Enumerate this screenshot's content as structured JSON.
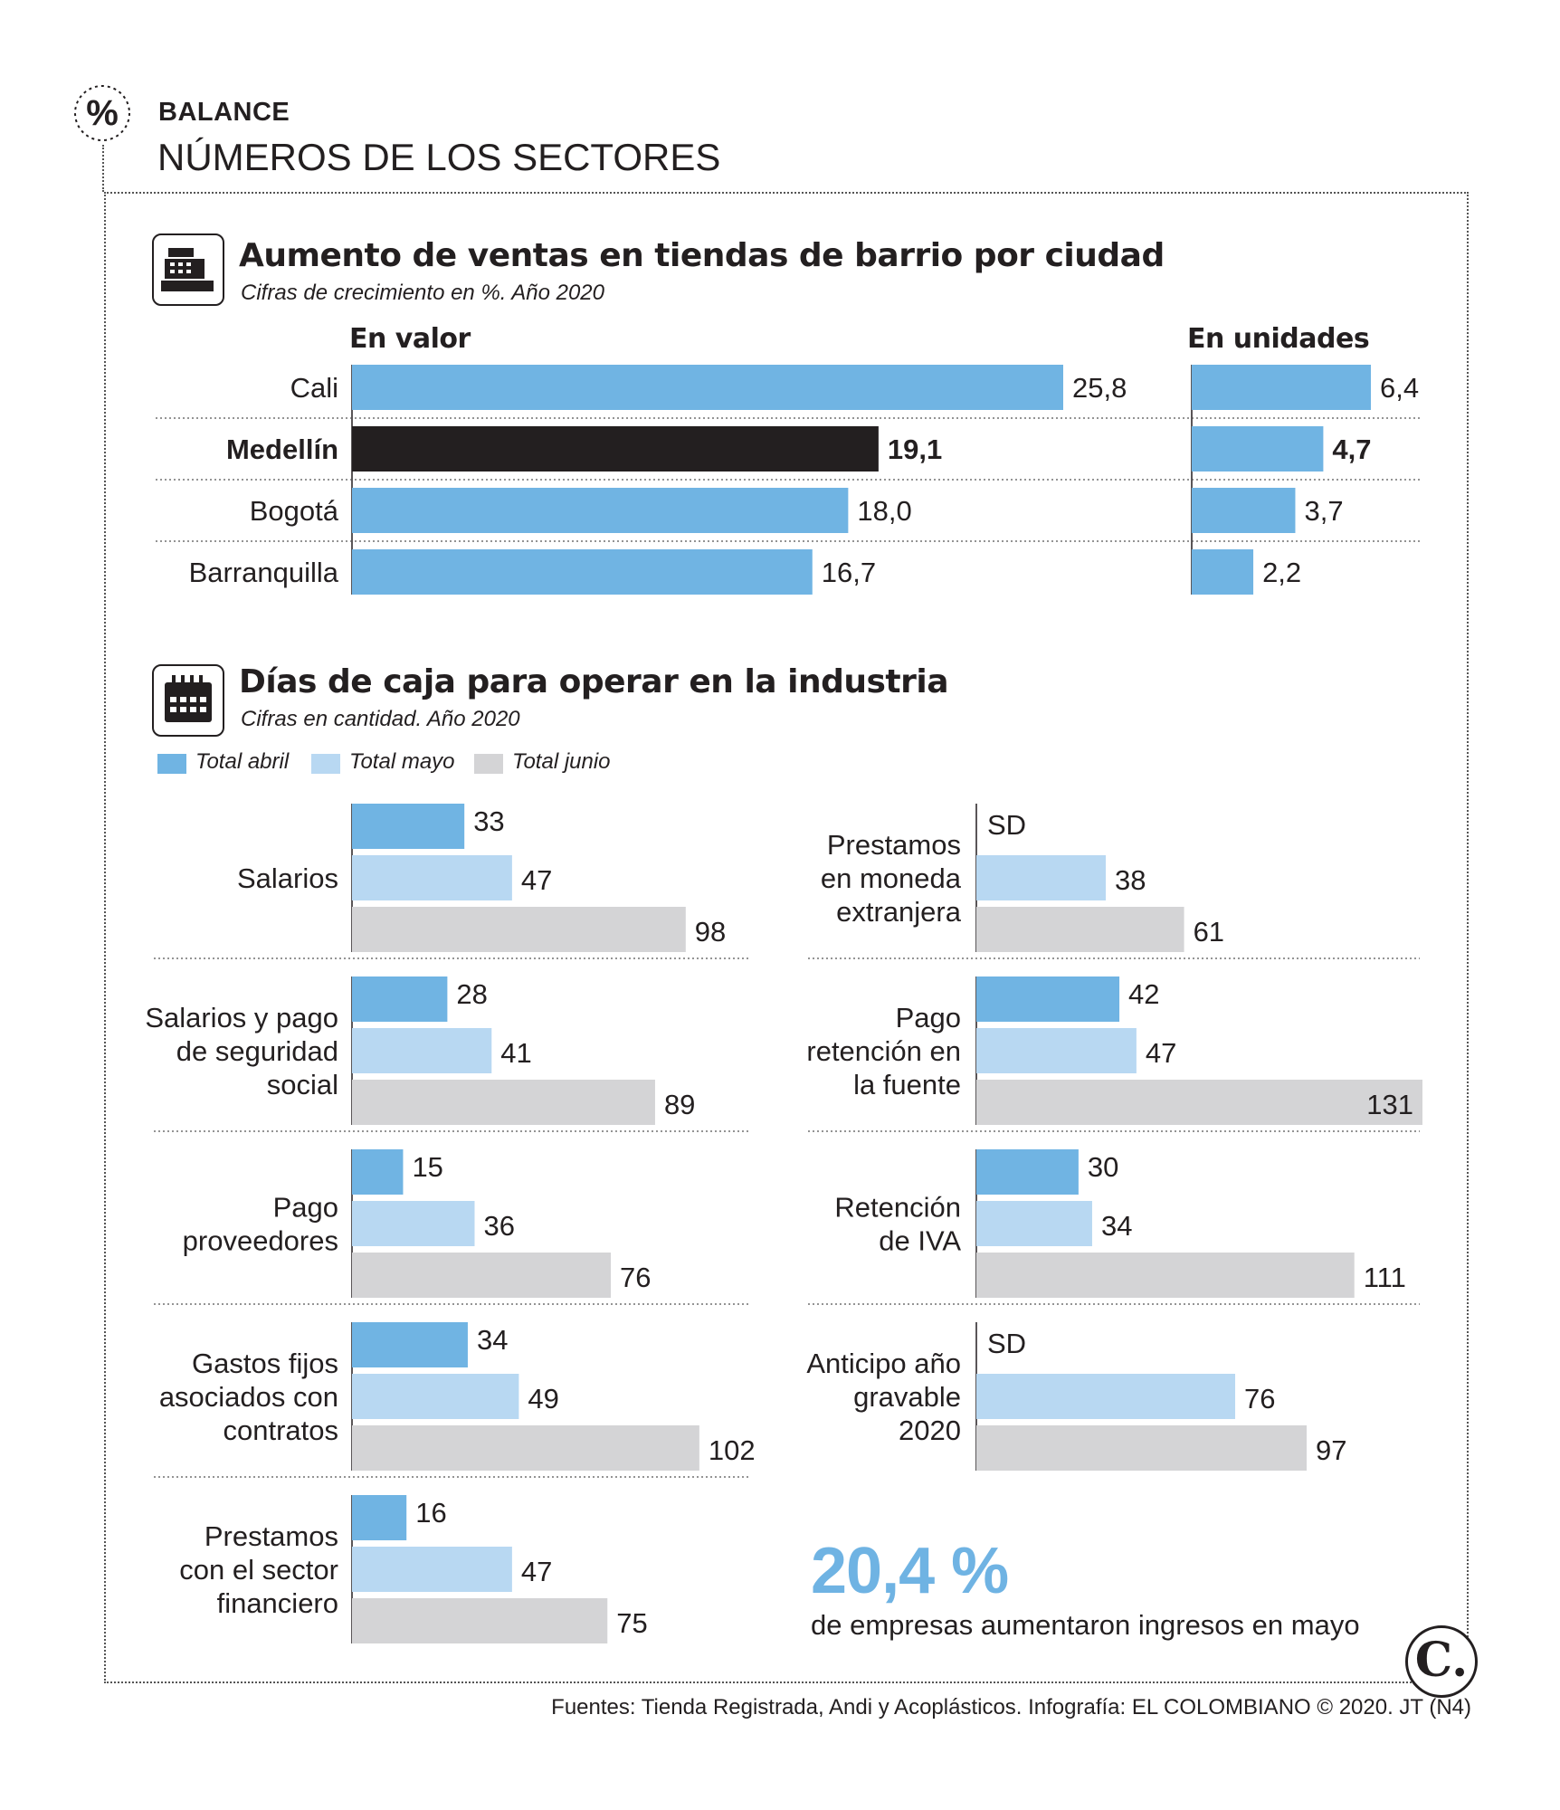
{
  "header": {
    "kicker": "BALANCE",
    "title": "NÚMEROS DE LOS SECTORES"
  },
  "colors": {
    "abril": "#70b4e3",
    "mayo": "#b8d8f2",
    "junio": "#d4d4d6",
    "highlight": "#231f20",
    "stat": "#6fb3e3"
  },
  "section1": {
    "title": "Aumento de ventas en tiendas de barrio por ciudad",
    "subtitle": "Cifras de crecimiento en %. Año 2020",
    "icon": "cash-register-icon",
    "col_valor": "En valor",
    "col_unidades": "En unidades"
  },
  "section2": {
    "title": "Días de caja para operar en la industria",
    "subtitle": "Cifras en cantidad. Año 2020",
    "icon": "calendar-icon",
    "legend": [
      "Total abril",
      "Total mayo",
      "Total junio"
    ]
  },
  "chart_data": [
    {
      "type": "bar",
      "orientation": "horizontal",
      "title": "Aumento de ventas en tiendas de barrio por ciudad",
      "subtitle": "Cifras de crecimiento en %. Año 2020",
      "categories": [
        "Cali",
        "Medellín",
        "Bogotá",
        "Barranquilla"
      ],
      "highlight": "Medellín",
      "series": [
        {
          "name": "En valor",
          "values": [
            25.8,
            19.1,
            18.0,
            16.7
          ],
          "labels": [
            "25,8",
            "19,1",
            "18,0",
            "16,7"
          ]
        },
        {
          "name": "En unidades",
          "values": [
            6.4,
            4.7,
            3.7,
            2.2
          ],
          "labels": [
            "6,4",
            "4,7",
            "3,7",
            "2,2"
          ]
        }
      ]
    },
    {
      "type": "bar",
      "orientation": "horizontal",
      "title": "Días de caja para operar en la industria",
      "subtitle": "Cifras en cantidad. Año 2020",
      "series_names": [
        "Total abril",
        "Total mayo",
        "Total junio"
      ],
      "groups": [
        {
          "label": [
            "Salarios"
          ],
          "values": [
            33,
            47,
            98
          ],
          "labels": [
            "33",
            "47",
            "98"
          ]
        },
        {
          "label": [
            "Salarios y pago",
            "de seguridad",
            "social"
          ],
          "values": [
            28,
            41,
            89
          ],
          "labels": [
            "28",
            "41",
            "89"
          ]
        },
        {
          "label": [
            "Pago",
            "proveedores"
          ],
          "values": [
            15,
            36,
            76
          ],
          "labels": [
            "15",
            "36",
            "76"
          ]
        },
        {
          "label": [
            "Gastos fijos",
            "asociados con",
            "contratos"
          ],
          "values": [
            34,
            49,
            102
          ],
          "labels": [
            "34",
            "49",
            "102"
          ]
        },
        {
          "label": [
            "Prestamos",
            "con el sector",
            "financiero"
          ],
          "values": [
            16,
            47,
            75
          ],
          "labels": [
            "16",
            "47",
            "75"
          ]
        },
        {
          "label": [
            "Prestamos",
            "en moneda",
            "extranjera"
          ],
          "values": [
            null,
            38,
            61
          ],
          "labels": [
            "SD",
            "38",
            "61"
          ]
        },
        {
          "label": [
            "Pago",
            "retención en",
            "la fuente"
          ],
          "values": [
            42,
            47,
            131
          ],
          "labels": [
            "42",
            "47",
            "131"
          ]
        },
        {
          "label": [
            "Retención",
            "de IVA"
          ],
          "values": [
            30,
            34,
            111
          ],
          "labels": [
            "30",
            "34",
            "111"
          ]
        },
        {
          "label": [
            "Anticipo año",
            "gravable",
            "2020"
          ],
          "values": [
            null,
            76,
            97
          ],
          "labels": [
            "SD",
            "76",
            "97"
          ]
        }
      ]
    }
  ],
  "highlight_stat": {
    "value": "20,4 %",
    "text": "de empresas aumentaron ingresos en mayo"
  },
  "footer": {
    "source": "Fuentes: Tienda Registrada, Andi y Acoplásticos. Infografía: EL COLOMBIANO © 2020. JT (N4)",
    "logo": "C."
  }
}
